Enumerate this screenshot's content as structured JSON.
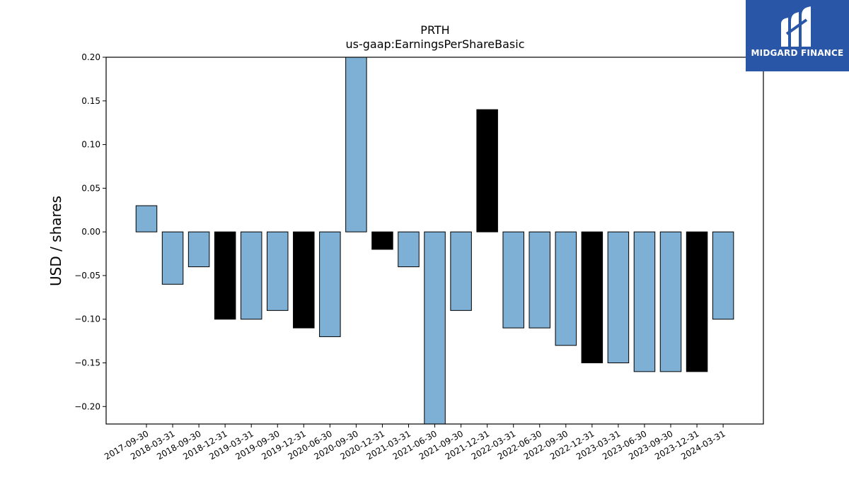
{
  "brand": {
    "name": "MIDGARD FINANCE",
    "bg_color": "#2a56a8"
  },
  "chart_data": {
    "type": "bar",
    "title": "PRTH",
    "subtitle": "us-gaap:EarningsPerShareBasic",
    "xlabel": "",
    "ylabel": "USD / shares",
    "ylim": [
      -0.22,
      0.2
    ],
    "yticks": [
      0.2,
      0.15,
      0.1,
      0.05,
      0.0,
      -0.05,
      -0.1,
      -0.15,
      -0.2
    ],
    "ytick_labels": [
      "0.20",
      "0.15",
      "0.10",
      "0.05",
      "0.00",
      "−0.05",
      "−0.10",
      "−0.15",
      "−0.20"
    ],
    "grid": false,
    "categories": [
      "2017-09-30",
      "2018-03-31",
      "2018-09-30",
      "2018-12-31",
      "2019-03-31",
      "2019-09-30",
      "2019-12-31",
      "2020-06-30",
      "2020-09-30",
      "2020-12-31",
      "2021-03-31",
      "2021-06-30",
      "2021-09-30",
      "2021-12-31",
      "2022-03-31",
      "2022-06-30",
      "2022-09-30",
      "2022-12-31",
      "2023-03-31",
      "2023-06-30",
      "2023-09-30",
      "2023-12-31",
      "2024-03-31"
    ],
    "values": [
      0.03,
      -0.06,
      -0.04,
      -0.1,
      -0.1,
      -0.09,
      -0.11,
      -0.12,
      0.2,
      -0.02,
      -0.04,
      -0.22,
      -0.09,
      0.14,
      -0.11,
      -0.11,
      -0.13,
      -0.15,
      -0.15,
      -0.16,
      -0.16,
      -0.16,
      -0.1
    ],
    "bar_kind": [
      "q",
      "q",
      "q",
      "fy",
      "q",
      "q",
      "fy",
      "q",
      "q",
      "fy",
      "q",
      "q",
      "q",
      "fy",
      "q",
      "q",
      "q",
      "fy",
      "q",
      "q",
      "q",
      "fy",
      "q"
    ],
    "colors": {
      "q": "#7eafd4",
      "fy": "#000000",
      "edge": "#000000"
    }
  }
}
